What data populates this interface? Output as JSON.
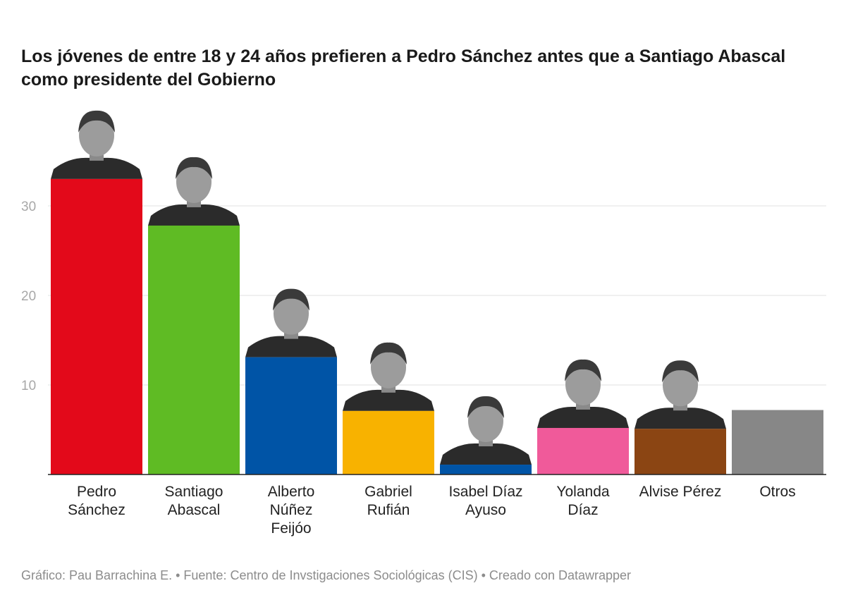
{
  "chart_data": {
    "type": "bar",
    "title": "Los jóvenes de entre 18 y 24 años prefieren a Pedro Sánchez antes que a Santiago Abascal como presidente del Gobierno",
    "categories": [
      [
        "Pedro",
        "Sánchez"
      ],
      [
        "Santiago",
        "Abascal"
      ],
      [
        "Alberto",
        "Núñez",
        "Feijóo"
      ],
      [
        "Gabriel",
        "Rufián"
      ],
      [
        "Isabel Díaz",
        "Ayuso"
      ],
      [
        "Yolanda",
        "Díaz"
      ],
      [
        "Alvise Pérez"
      ],
      [
        "Otros"
      ]
    ],
    "values": [
      33.0,
      27.8,
      13.1,
      7.1,
      1.1,
      5.2,
      5.1,
      7.2
    ],
    "colors": [
      "#e3091a",
      "#5fbb24",
      "#0054a6",
      "#f8b200",
      "#0054a6",
      "#f05a9a",
      "#8b4513",
      "#878787"
    ],
    "portrait": [
      true,
      true,
      true,
      true,
      true,
      true,
      true,
      false
    ],
    "yticks": [
      10,
      20,
      30
    ],
    "ylim": [
      0,
      36
    ],
    "grid": true
  },
  "footer": "Gráfico: Pau Barrachina E. • Fuente: Centro de Invstigaciones Sociológicas (CIS) • Creado con Datawrapper"
}
